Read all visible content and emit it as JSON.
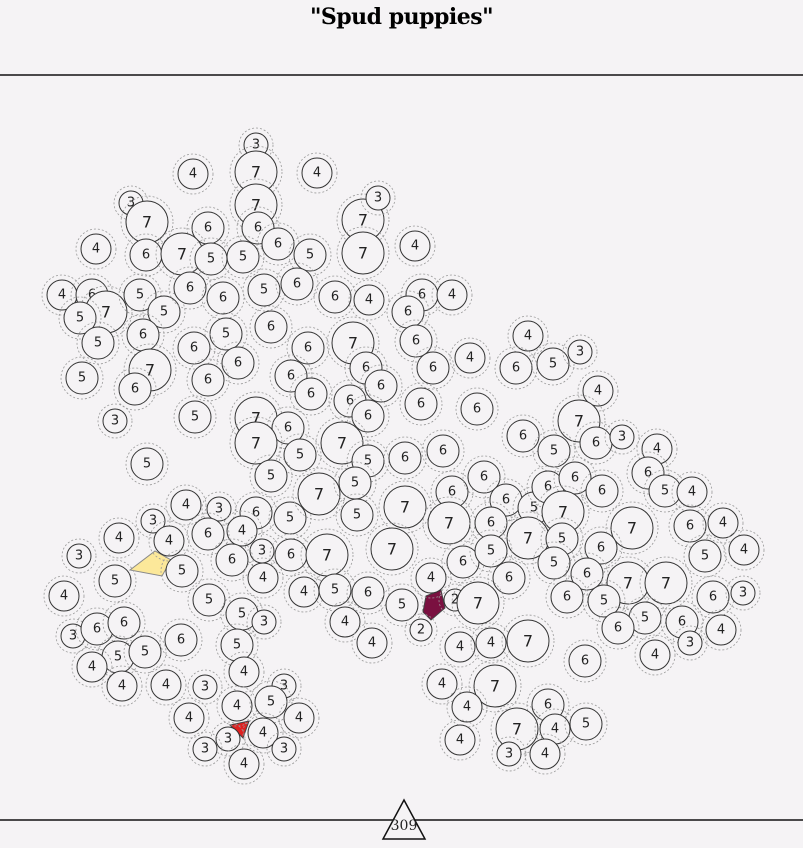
{
  "header": {
    "title": "\"Spud puppies\""
  },
  "circles": [
    3,
    4,
    7,
    4,
    7,
    3,
    7,
    6,
    6,
    7,
    3,
    4,
    6,
    7,
    5,
    5,
    6,
    5,
    7,
    4,
    4,
    6,
    7,
    5,
    5,
    5,
    6,
    6,
    5,
    6,
    6,
    4,
    6,
    4,
    6,
    5,
    6,
    5,
    6,
    6,
    7,
    6,
    6,
    6,
    7,
    5,
    6,
    6,
    6,
    6,
    6,
    6,
    4,
    4,
    6,
    5,
    3,
    4,
    3,
    5,
    6,
    6,
    6,
    6,
    6,
    7,
    6,
    7,
    7,
    5,
    5,
    6,
    6,
    5,
    5,
    7,
    6,
    5,
    6,
    3,
    4,
    6,
    5,
    4,
    4,
    3,
    3,
    4,
    4,
    6,
    5,
    4,
    6,
    3,
    6,
    7,
    5,
    7,
    5,
    6,
    6,
    6,
    5,
    6,
    6,
    6,
    7,
    6,
    7,
    7,
    5,
    7,
    6,
    4,
    5,
    4,
    3,
    5,
    5,
    4,
    6,
    7,
    7,
    6,
    5,
    6,
    5,
    6,
    6,
    4,
    7,
    7,
    4,
    5,
    5,
    3,
    4,
    5,
    6,
    4,
    5,
    2,
    7,
    6,
    5,
    6,
    3,
    5,
    6,
    6,
    3,
    4,
    3,
    6,
    6,
    5,
    5,
    4,
    6,
    5,
    4,
    2,
    4,
    4,
    7,
    6,
    4,
    4,
    4,
    4,
    3,
    3,
    4,
    7,
    4,
    4,
    5,
    4,
    4,
    6,
    3,
    4,
    3,
    3,
    4,
    4,
    7,
    4,
    5,
    3,
    4
  ],
  "footer": {
    "counter": 309
  }
}
